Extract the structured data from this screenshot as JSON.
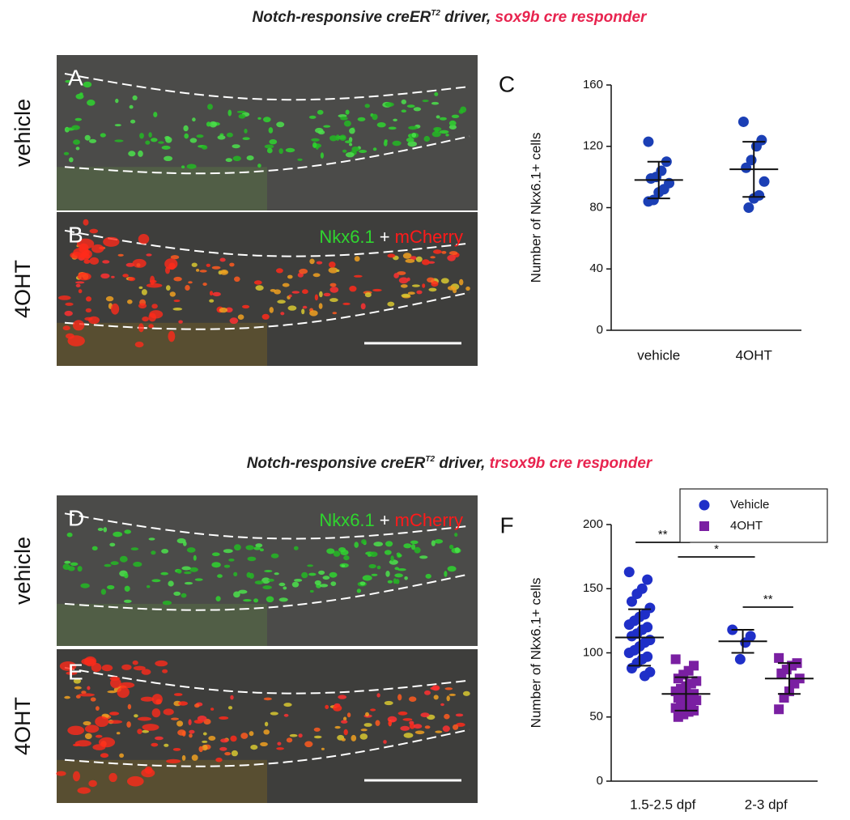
{
  "figure": {
    "top": {
      "heading": [
        "Notch-responsive creER",
        "T2",
        " driver, ",
        "sox9b cre responder"
      ],
      "panels": [
        {
          "letter": "A",
          "condition": "vehicle"
        },
        {
          "letter": "B",
          "condition": "4OHT",
          "stain": [
            "Nkx6.1",
            "+",
            "mCherry"
          ]
        }
      ],
      "chart_letter": "C"
    },
    "bottom": {
      "heading": [
        "Notch-responsive creER",
        "T2",
        " driver, ",
        "trsox9b cre responder"
      ],
      "panels": [
        {
          "letter": "D",
          "condition": "vehicle",
          "stain": [
            "Nkx6.1",
            "+",
            "mCherry"
          ]
        },
        {
          "letter": "E",
          "condition": "4OHT"
        }
      ],
      "chart_letter": "F"
    }
  },
  "chart_data": [
    {
      "type": "dot",
      "y_label": "Number of Nkx6.1+ cells",
      "categories": [
        "vehicle",
        "4OHT"
      ],
      "ylim": [
        0,
        160
      ],
      "yticks": [
        0,
        40,
        80,
        120,
        160
      ],
      "series": [
        {
          "color": "#1b3fb5",
          "marker": "circle",
          "values": [
            [
              123,
              110,
              104,
              100,
              99,
              96,
              92,
              90,
              85,
              84
            ],
            [
              136,
              124,
              120,
              111,
              106,
              97,
              88,
              86,
              80
            ]
          ],
          "means": [
            98,
            105
          ],
          "errors": [
            12,
            18
          ]
        }
      ]
    },
    {
      "type": "dot",
      "y_label": "Number of Nkx6.1+ cells",
      "categories": [
        "1.5-2.5 dpf",
        "2-3 dpf"
      ],
      "ylim": [
        0,
        200
      ],
      "yticks": [
        0,
        50,
        100,
        150,
        200
      ],
      "legend": "top-right",
      "series": [
        {
          "name": "Vehicle",
          "color": "#1f2fc8",
          "marker": "circle",
          "values": [
            [
              163,
              157,
              150,
              146,
              140,
              135,
              130,
              128,
              125,
              122,
              120,
              118,
              115,
              113,
              110,
              108,
              105,
              102,
              100,
              97,
              95,
              92,
              88,
              85,
              82
            ],
            [
              118,
              113,
              108,
              95
            ]
          ],
          "means": [
            112,
            109
          ],
          "errors": [
            22,
            9
          ]
        },
        {
          "name": "4OHT",
          "color": "#7a1fa2",
          "marker": "square",
          "values": [
            [
              95,
              90,
              86,
              83,
              80,
              78,
              76,
              74,
              72,
              70,
              68,
              67,
              66,
              65,
              63,
              62,
              60,
              58,
              57,
              55,
              54,
              52,
              50
            ],
            [
              96,
              92,
              90,
              87,
              84,
              80,
              76,
              70,
              65,
              56
            ]
          ],
          "means": [
            68,
            80
          ],
          "errors": [
            13,
            12
          ]
        }
      ],
      "annotations": [
        "**",
        "*",
        "**"
      ]
    }
  ]
}
